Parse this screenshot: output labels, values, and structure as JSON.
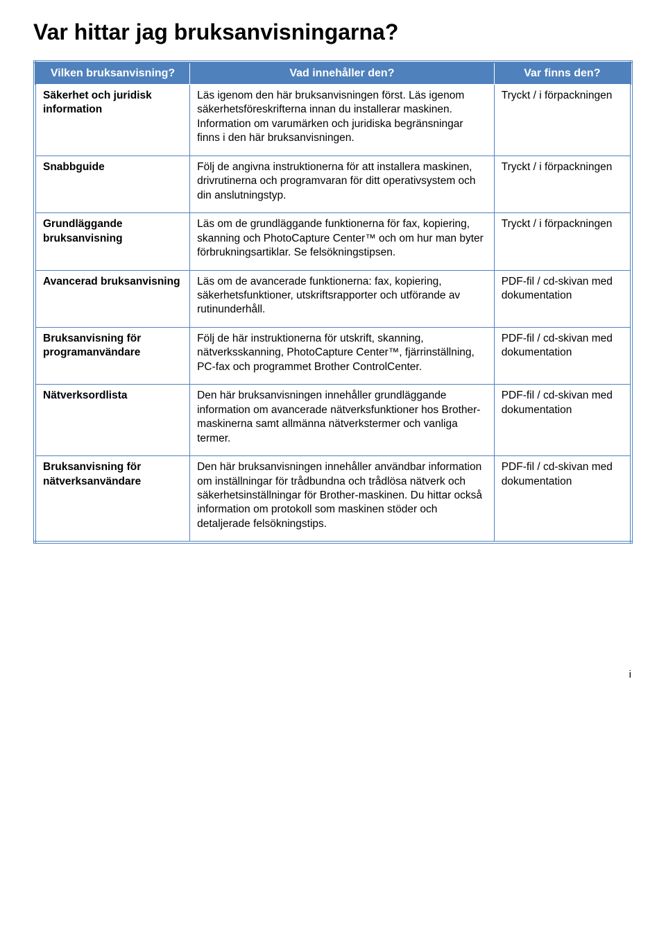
{
  "heading": "Var hittar jag bruksanvisningarna?",
  "table": {
    "header_bg": "#4f81bd",
    "header_fg": "#ffffff",
    "border_color": "#4f81bd",
    "columns": [
      "Vilken bruksanvisning?",
      "Vad innehåller den?",
      "Var finns den?"
    ],
    "rows": [
      {
        "c1": "Säkerhet och juridisk information",
        "c2": "Läs igenom den här bruksanvisningen först. Läs igenom säkerhetsföreskrifterna innan du installerar maskinen. Information om varumärken och juridiska begränsningar finns i den här bruksanvisningen.",
        "c3": "Tryckt / i förpackningen"
      },
      {
        "c1": "Snabbguide",
        "c2": "Följ de angivna instruktionerna för att installera maskinen, drivrutinerna och programvaran för ditt operativsystem och din anslutningstyp.",
        "c3": "Tryckt / i förpackningen"
      },
      {
        "c1": "Grundläggande bruksanvisning",
        "c2": "Läs om de grundläggande funktionerna för fax, kopiering, skanning och PhotoCapture Center™ och om hur man byter förbrukningsartiklar. Se felsökningstipsen.",
        "c3": "Tryckt / i förpackningen"
      },
      {
        "c1": "Avancerad bruksanvisning",
        "c2": "Läs om de avancerade funktionerna: fax, kopiering, säkerhetsfunktioner, utskriftsrapporter och utförande av rutinunderhåll.",
        "c3": "PDF-fil / cd-skivan med dokumentation"
      },
      {
        "c1": "Bruksanvisning för programanvändare",
        "c2": "Följ de här instruktionerna för utskrift, skanning, nätverksskanning, PhotoCapture Center™, fjärrinställning, PC-fax och programmet Brother ControlCenter.",
        "c3": "PDF-fil / cd-skivan med dokumentation"
      },
      {
        "c1": "Nätverksordlista",
        "c2": "Den här bruksanvisningen innehåller grundläggande information om avancerade nätverksfunktioner hos Brother-maskinerna samt allmänna nätverkstermer och vanliga termer.",
        "c3": "PDF-fil / cd-skivan med dokumentation"
      },
      {
        "c1": "Bruksanvisning för nätverksanvändare",
        "c2": "Den här bruksanvisningen innehåller användbar information om inställningar för trådbundna och trådlösa nätverk och säkerhetsinställningar för Brother-maskinen. Du hittar också information om protokoll som maskinen stöder och detaljerade felsökningstips.",
        "c3": "PDF-fil / cd-skivan med dokumentation"
      }
    ]
  },
  "page_number": "i"
}
